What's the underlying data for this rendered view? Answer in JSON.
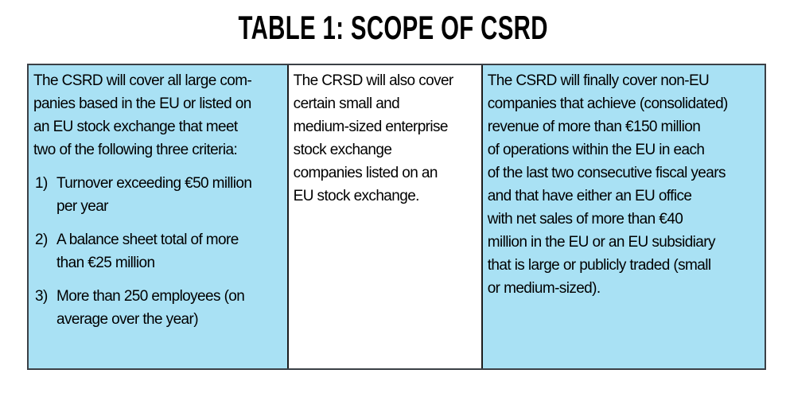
{
  "title": "TABLE 1: SCOPE OF CSRD",
  "colors": {
    "cell_blue": "#A9E1F4",
    "cell_white": "#FFFFFF",
    "outer_border": "#3b4046",
    "divider": "#1c1c1c",
    "text": "#000000"
  },
  "table": {
    "columns": [
      {
        "id": "large-eu-companies",
        "intro": "The CSRD will cover all large com-\npanies based in the EU or listed on\nan EU stock exchange that meet\ntwo of the following three criteria:",
        "criteria": [
          {
            "marker": "1)",
            "text": "Turnover exceeding €50 million\nper year"
          },
          {
            "marker": "2)",
            "text": "A balance sheet total of more\nthan €25 million"
          },
          {
            "marker": "3)",
            "text": "More than 250 employees (on\naverage over the year)"
          }
        ]
      },
      {
        "id": "sme-listed-companies",
        "text": "The CRSD will also cover\ncertain small and\nmedium-sized enterprise\nstock exchange\ncompanies listed on an\nEU stock exchange."
      },
      {
        "id": "non-eu-companies",
        "text": "The CSRD will finally cover non-EU\ncompanies that achieve (consolidated)\nrevenue of more than €150 million\nof operations within the EU in each\nof the last two consecutive fiscal years\nand that have either an EU office\nwith net sales of more than €40\nmillion in the EU or an EU subsidiary\nthat is large or publicly traded (small\nor medium-sized)."
      }
    ]
  }
}
